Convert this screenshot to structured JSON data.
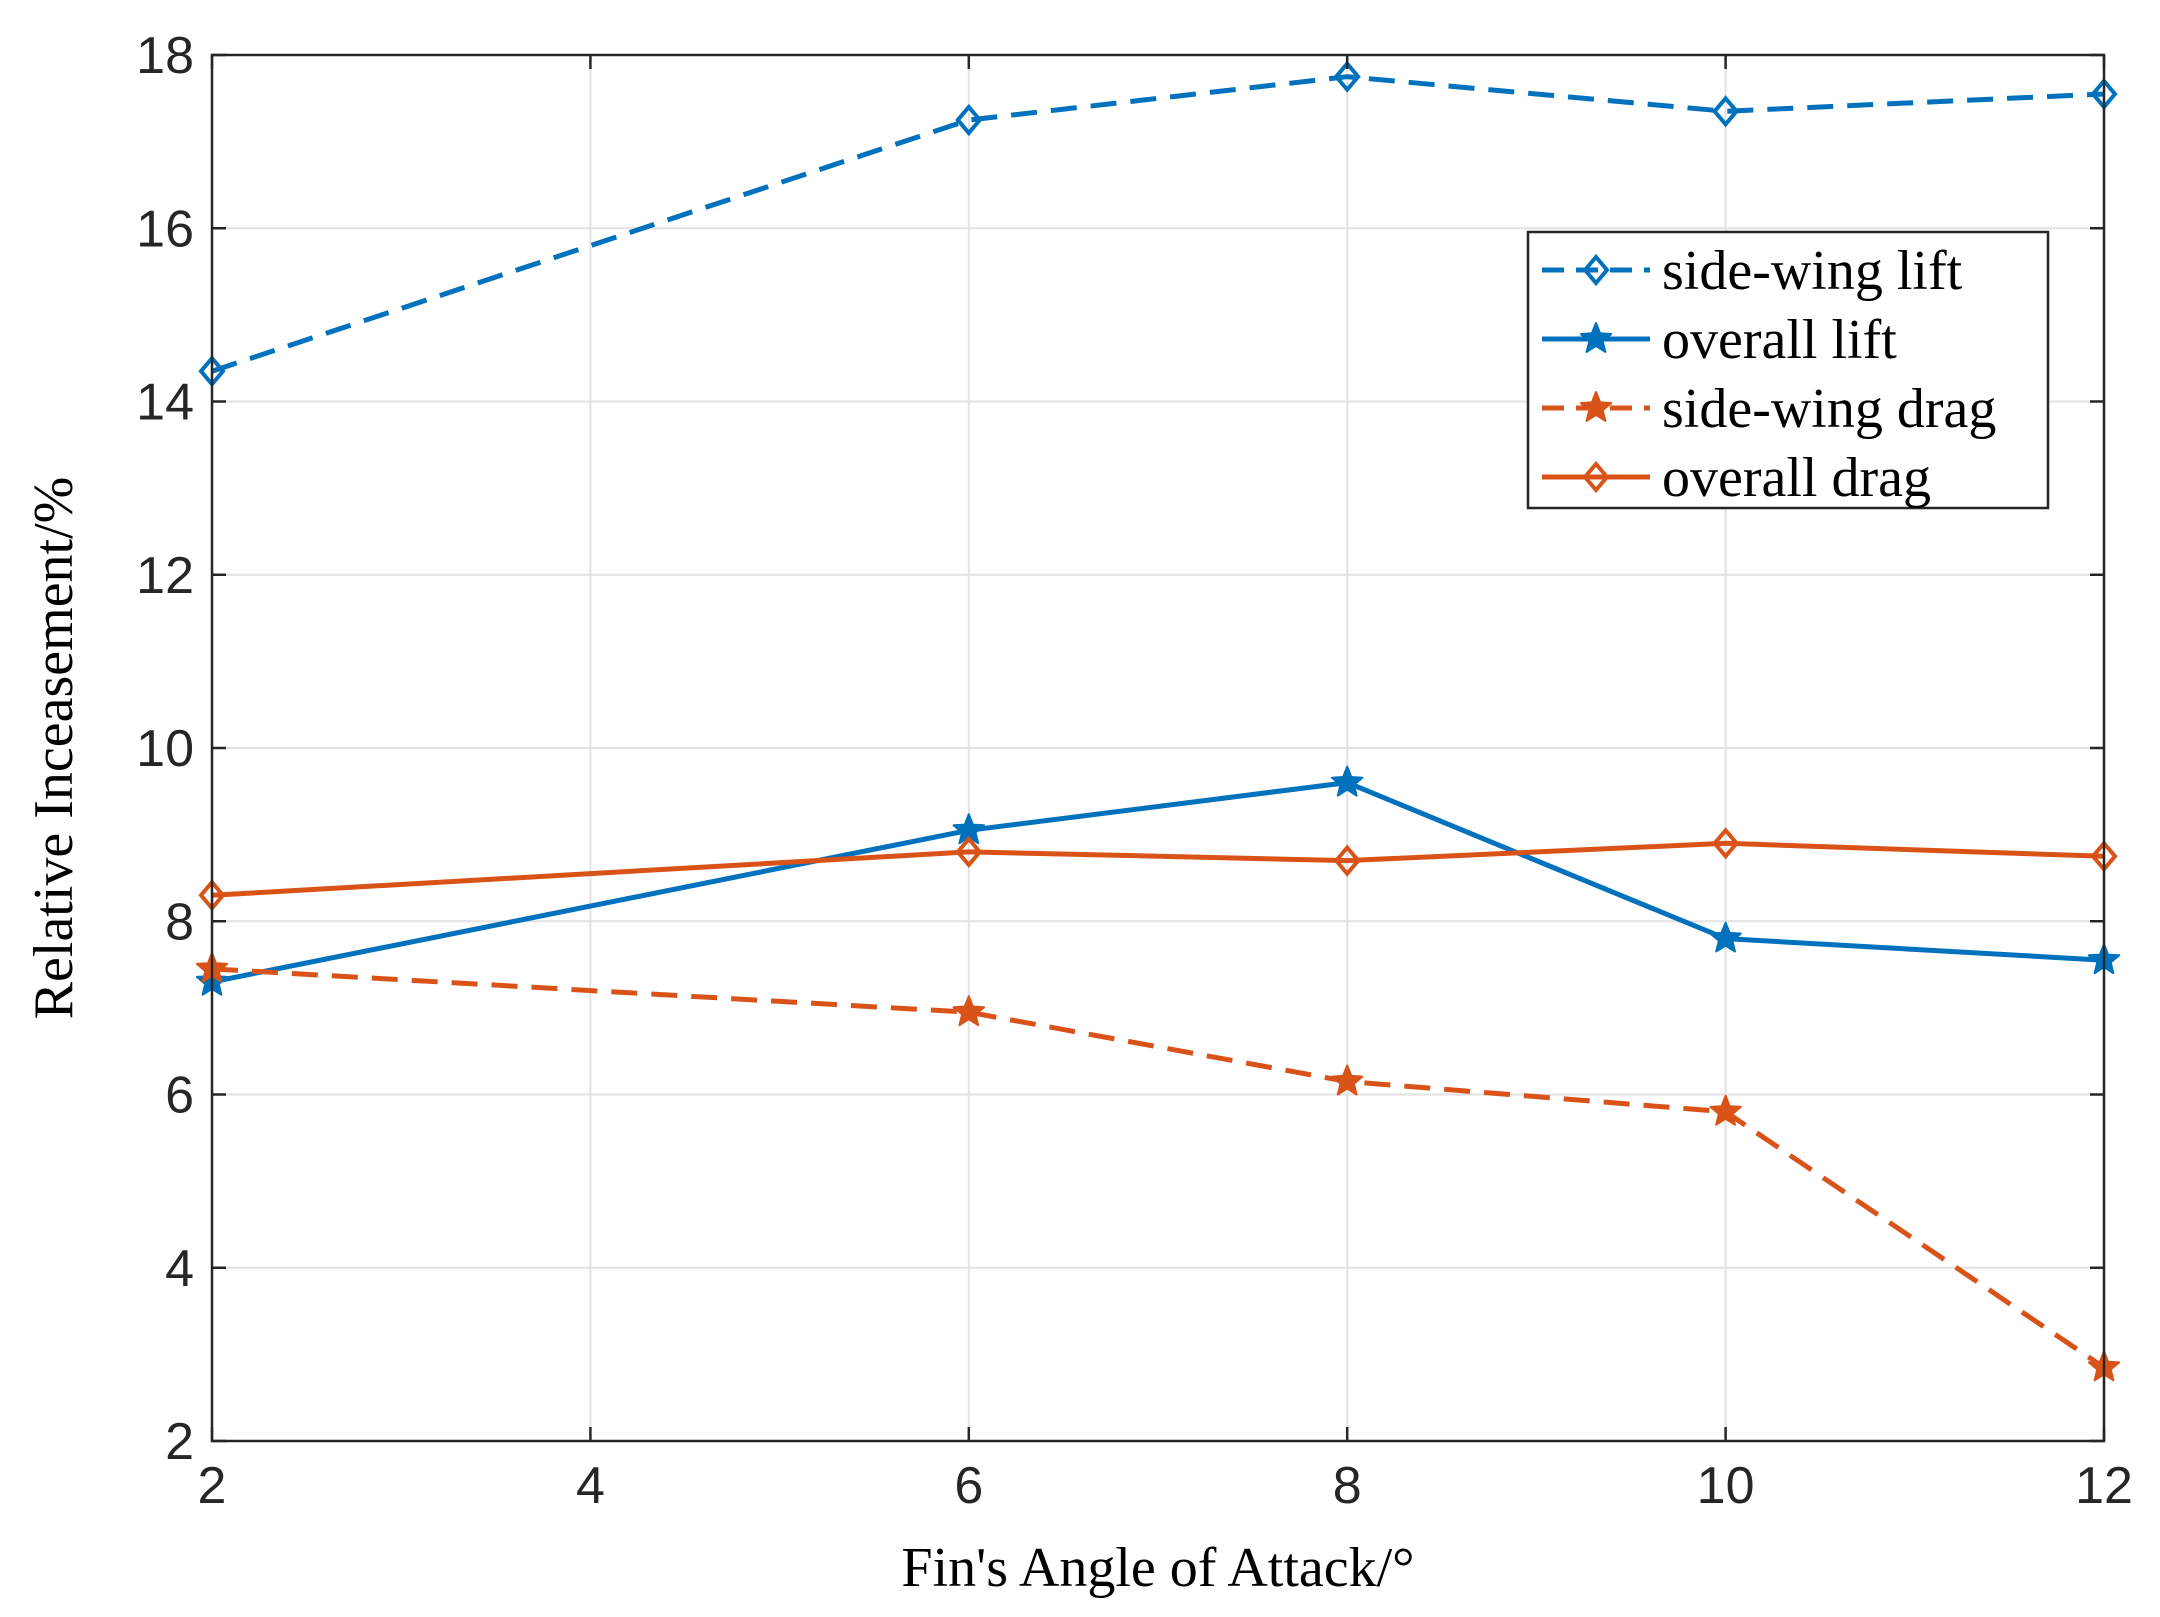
{
  "chart_data": {
    "type": "line",
    "title": "",
    "xlabel": "Fin's Angle of Attack/°",
    "ylabel": "Relative Inceasement/%",
    "xlim": [
      2,
      12
    ],
    "ylim": [
      2,
      18
    ],
    "xticks": [
      2,
      4,
      6,
      8,
      10,
      12
    ],
    "yticks": [
      2,
      4,
      6,
      8,
      10,
      12,
      14,
      16,
      18
    ],
    "grid": true,
    "legend_position": "top-right",
    "x": [
      2,
      6,
      8,
      10,
      12
    ],
    "series": [
      {
        "name": "side-wing lift",
        "values": [
          14.35,
          17.25,
          17.75,
          17.35,
          17.55
        ],
        "color": "#0072BD",
        "line_style": "dashed",
        "marker": "diamond"
      },
      {
        "name": "overall lift",
        "values": [
          7.3,
          9.05,
          9.6,
          7.8,
          7.55
        ],
        "color": "#0072BD",
        "line_style": "solid",
        "marker": "star"
      },
      {
        "name": "side-wing drag",
        "values": [
          7.45,
          6.95,
          6.15,
          5.8,
          2.85
        ],
        "color": "#D95319",
        "line_style": "dashed",
        "marker": "star"
      },
      {
        "name": "overall drag",
        "values": [
          8.3,
          8.8,
          8.7,
          8.9,
          8.75
        ],
        "color": "#D95319",
        "line_style": "solid",
        "marker": "diamond"
      }
    ]
  }
}
